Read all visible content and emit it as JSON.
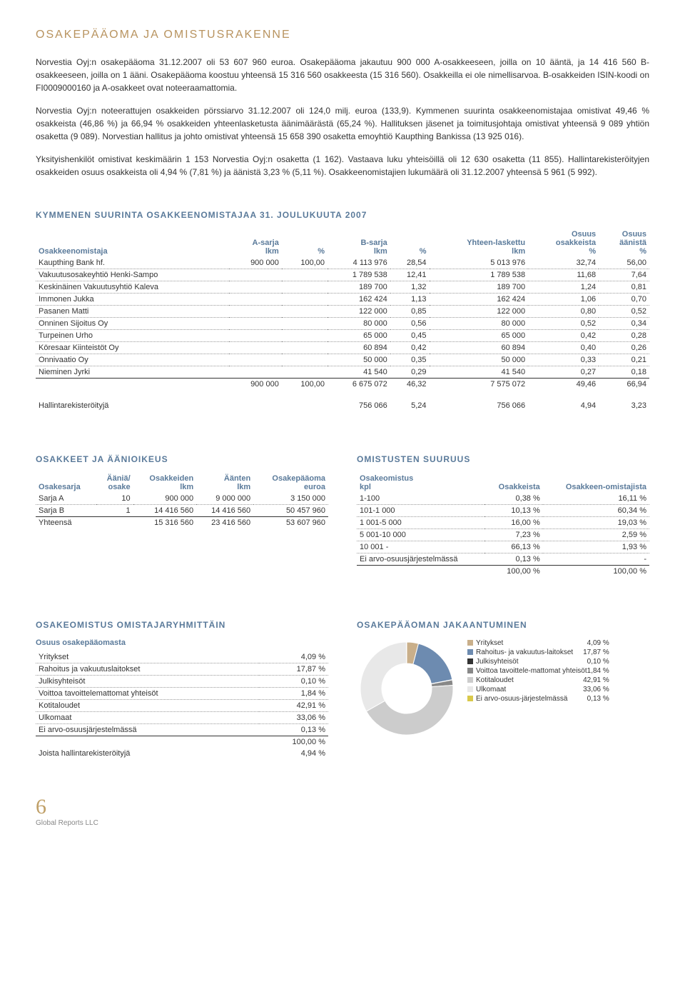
{
  "title": "OSAKEPÄÄOMA JA OMISTUSRAKENNE",
  "para1": "Norvestia Oyj:n osakepääoma 31.12.2007 oli 53 607 960 euroa. Osakepääoma jakautuu 900 000 A-osakkeeseen, joilla on 10 ääntä, ja 14 416 560 B-osakkeeseen, joilla on 1 ääni. Osakepääoma koostuu yhteensä 15 316 560 osakkeesta (15 316 560). Osakkeilla ei ole nimellisarvoa. B-osakkeiden ISIN-koodi on FI0009000160 ja A-osakkeet ovat noteeraamattomia.",
  "para2": "Norvestia Oyj:n noteerattujen osakkeiden pörssiarvo 31.12.2007 oli 124,0 milj. euroa (133,9). Kymmenen suurinta osakkeenomistajaa omistivat 49,46 % osakkeista (46,86 %) ja 66,94 % osakkeiden yhteenlasketusta äänimäärästä (65,24 %). Hallituksen jäsenet ja toimitusjohtaja omistivat yhteensä 9 089 yhtiön osaketta (9 089). Norvestian hallitus ja johto omistivat yhteensä 15 658 390 osaketta emoyhtiö Kaupthing Bankissa (13 925 016).",
  "para3": "Yksityishenkilöt omistivat keskimäärin 1 153 Norvestia Oyj:n osaketta (1 162). Vastaava luku yhteisöillä oli 12 630 osaketta (11 855). Hallintarekisteröityjen osakkeiden osuus osakkeista oli 4,94 % (7,81 %) ja äänistä 3,23 % (5,11 %). Osakkeenomistajien lukumäärä oli 31.12.2007 yhteensä 5 961 (5 992).",
  "t1": {
    "title": "KYMMENEN SUURINTA OSAKKEENOMISTAJAA 31. JOULUKUUTA 2007",
    "h": [
      "Osakkeenomistaja",
      "A-sarja lkm",
      "%",
      "B-sarja lkm",
      "%",
      "Yhteen-laskettu lkm",
      "Osuus osakkeista %",
      "Osuus äänistä %"
    ],
    "rows": [
      [
        "Kaupthing Bank hf.",
        "900 000",
        "100,00",
        "4 113 976",
        "28,54",
        "5 013 976",
        "32,74",
        "56,00"
      ],
      [
        "Vakuutusosakeyhtiö Henki-Sampo",
        "",
        "",
        "1 789 538",
        "12,41",
        "1 789 538",
        "11,68",
        "7,64"
      ],
      [
        "Keskinäinen Vakuutusyhtiö Kaleva",
        "",
        "",
        "189 700",
        "1,32",
        "189 700",
        "1,24",
        "0,81"
      ],
      [
        "Immonen Jukka",
        "",
        "",
        "162 424",
        "1,13",
        "162 424",
        "1,06",
        "0,70"
      ],
      [
        "Pasanen Matti",
        "",
        "",
        "122 000",
        "0,85",
        "122 000",
        "0,80",
        "0,52"
      ],
      [
        "Onninen Sijoitus Oy",
        "",
        "",
        "80 000",
        "0,56",
        "80 000",
        "0,52",
        "0,34"
      ],
      [
        "Turpeinen Urho",
        "",
        "",
        "65 000",
        "0,45",
        "65 000",
        "0,42",
        "0,28"
      ],
      [
        "Köresaar Kiinteistöt Oy",
        "",
        "",
        "60 894",
        "0,42",
        "60 894",
        "0,40",
        "0,26"
      ],
      [
        "Onnivaatio Oy",
        "",
        "",
        "50 000",
        "0,35",
        "50 000",
        "0,33",
        "0,21"
      ],
      [
        "Nieminen Jyrki",
        "",
        "",
        "41 540",
        "0,29",
        "41 540",
        "0,27",
        "0,18"
      ]
    ],
    "total": [
      "",
      "900 000",
      "100,00",
      "6 675 072",
      "46,32",
      "7 575 072",
      "49,46",
      "66,94"
    ],
    "extra": [
      "Hallintarekisteröityjä",
      "",
      "",
      "756 066",
      "5,24",
      "756 066",
      "4,94",
      "3,23"
    ]
  },
  "t2": {
    "title": "OSAKKEET JA ÄÄNIOIKEUS",
    "h": [
      "Osakesarja",
      "Ääniä/ osake",
      "Osakkeiden lkm",
      "Äänten lkm",
      "Osakepääoma euroa"
    ],
    "rows": [
      [
        "Sarja A",
        "10",
        "900 000",
        "9 000 000",
        "3 150 000"
      ],
      [
        "Sarja B",
        "1",
        "14 416 560",
        "14 416 560",
        "50 457 960"
      ]
    ],
    "total": [
      "Yhteensä",
      "",
      "15 316 560",
      "23 416 560",
      "53 607 960"
    ]
  },
  "t3": {
    "title": "OMISTUSTEN SUURUUS",
    "h": [
      "Osakeomistus kpl",
      "Osakkeista",
      "Osakkeen-omistajista"
    ],
    "rows": [
      [
        "1-100",
        "0,38 %",
        "16,11 %"
      ],
      [
        "101-1 000",
        "10,13 %",
        "60,34 %"
      ],
      [
        "1 001-5 000",
        "16,00 %",
        "19,03 %"
      ],
      [
        "5 001-10 000",
        "7,23 %",
        "2,59 %"
      ],
      [
        "10 001 -",
        "66,13 %",
        "1,93 %"
      ],
      [
        "Ei arvo-osuusjärjestelmässä",
        "0,13 %",
        "-"
      ]
    ],
    "total": [
      "",
      "100,00 %",
      "100,00 %"
    ]
  },
  "t4": {
    "title": "OSAKEOMISTUS OMISTAJARYHMITTÄIN",
    "sub": "Osuus osakepääomasta",
    "rows": [
      [
        "Yritykset",
        "4,09 %"
      ],
      [
        "Rahoitus ja vakuutuslaitokset",
        "17,87 %"
      ],
      [
        "Julkisyhteisöt",
        "0,10 %"
      ],
      [
        "Voittoa tavoittelemattomat yhteisöt",
        "1,84 %"
      ],
      [
        "Kotitaloudet",
        "42,91 %"
      ],
      [
        "Ulkomaat",
        "33,06 %"
      ],
      [
        "Ei arvo-osuusjärjestelmässä",
        "0,13 %"
      ]
    ],
    "total": [
      "",
      "100,00 %"
    ],
    "extra": [
      "Joista hallintarekisteröityjä",
      "4,94 %"
    ]
  },
  "pie": {
    "title": "OSAKEPÄÄOMAN JAKAANTUMINEN",
    "slices": [
      {
        "label": "Yritykset",
        "pct": "4,09 %",
        "val": 4.09,
        "color": "#c9af8a"
      },
      {
        "label": "Rahoitus- ja vakuutus-laitokset",
        "pct": "17,87 %",
        "val": 17.87,
        "color": "#6d8bb0"
      },
      {
        "label": "Julkisyhteisöt",
        "pct": "0,10 %",
        "val": 0.1,
        "color": "#333333"
      },
      {
        "label": "Voittoa tavoittele-mattomat yhteisöt",
        "pct": "1,84 %",
        "val": 1.84,
        "color": "#888888"
      },
      {
        "label": "Kotitaloudet",
        "pct": "42,91 %",
        "val": 42.91,
        "color": "#cccccc"
      },
      {
        "label": "Ulkomaat",
        "pct": "33,06 %",
        "val": 33.06,
        "color": "#e8e8e8"
      },
      {
        "label": "Ei arvo-osuus-järjestelmässä",
        "pct": "0,13 %",
        "val": 0.13,
        "color": "#d9c94a"
      }
    ],
    "inner_radius": 35,
    "outer_radius": 65,
    "size": 140
  },
  "page_num": "6",
  "footer": "Global Reports LLC"
}
